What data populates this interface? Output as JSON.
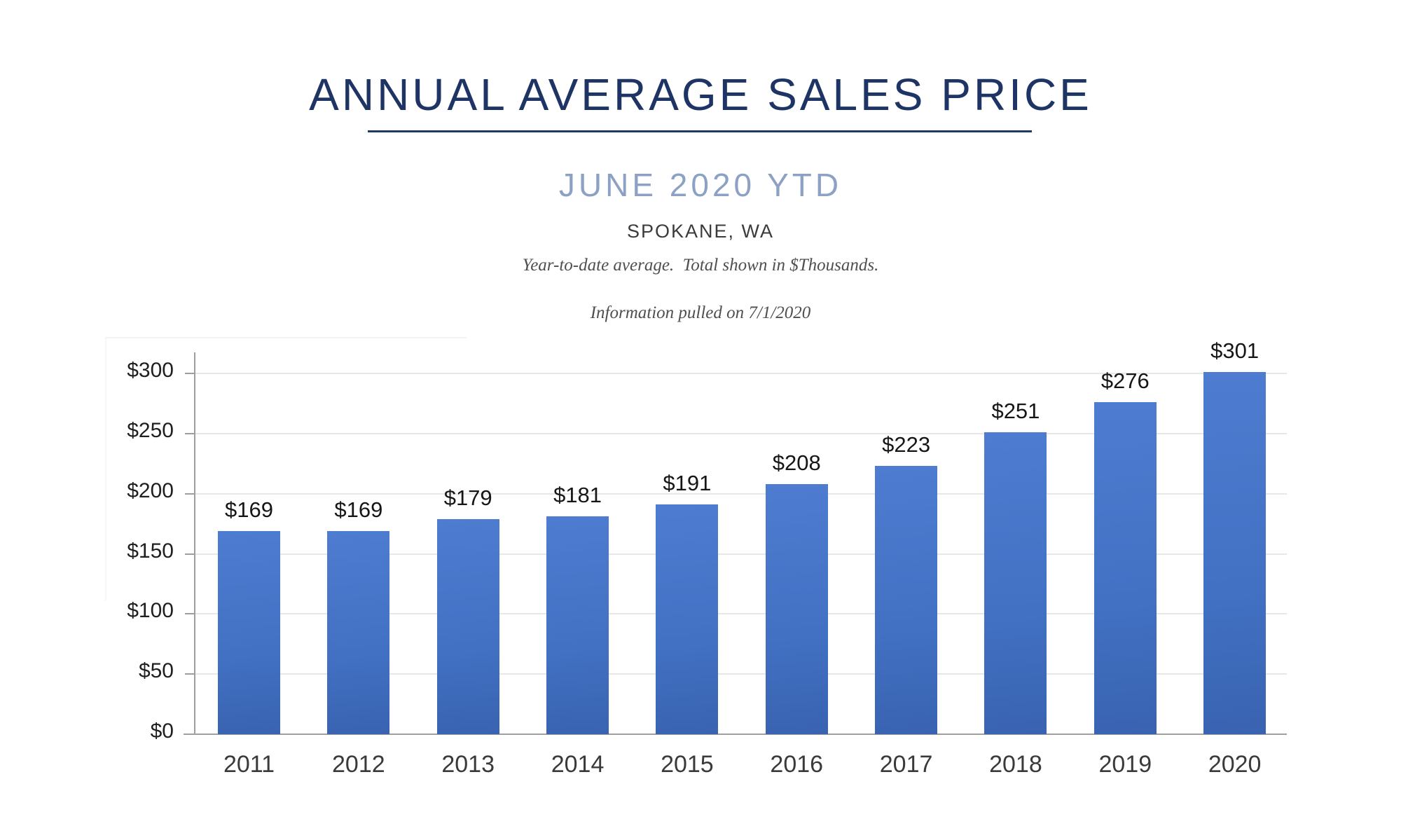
{
  "header": {
    "title": "ANNUAL AVERAGE SALES PRICE",
    "subtitle": "JUNE 2020 YTD",
    "location": "SPOKANE, WA",
    "note_line1": "Year-to-date average.  Total shown in $Thousands.",
    "note_line2": "Information pulled on 7/1/2020"
  },
  "colors": {
    "title": "#1e3464",
    "divider": "#1f3864",
    "subtitle": "#8ca1c3",
    "bar_gradient_top": "#4e7cd0",
    "bar_gradient_bottom": "#3963b1",
    "gridline": "#e7e7e7",
    "axis": "#9e9e9e",
    "value_label": "#161616",
    "category_label": "#3a3a3a"
  },
  "chart_data": {
    "type": "bar",
    "title": "ANNUAL AVERAGE SALES PRICE",
    "subtitle": "JUNE 2020 YTD",
    "region": "SPOKANE, WA",
    "units": "$Thousands",
    "categories": [
      "2011",
      "2012",
      "2013",
      "2014",
      "2015",
      "2016",
      "2017",
      "2018",
      "2019",
      "2020"
    ],
    "values": [
      169,
      169,
      179,
      181,
      191,
      208,
      223,
      251,
      276,
      301
    ],
    "value_labels": [
      "$169",
      "$169",
      "$179",
      "$181",
      "$191",
      "$208",
      "$223",
      "$251",
      "$276",
      "$301"
    ],
    "y_tick_values": [
      0,
      50,
      100,
      150,
      200,
      250,
      300
    ],
    "y_tick_labels": [
      "$0",
      "$50",
      "$100",
      "$150",
      "$200",
      "$250",
      "$300"
    ],
    "ylim": [
      0,
      300
    ],
    "xlabel": "",
    "ylabel": "",
    "grid": true,
    "legend": false
  }
}
